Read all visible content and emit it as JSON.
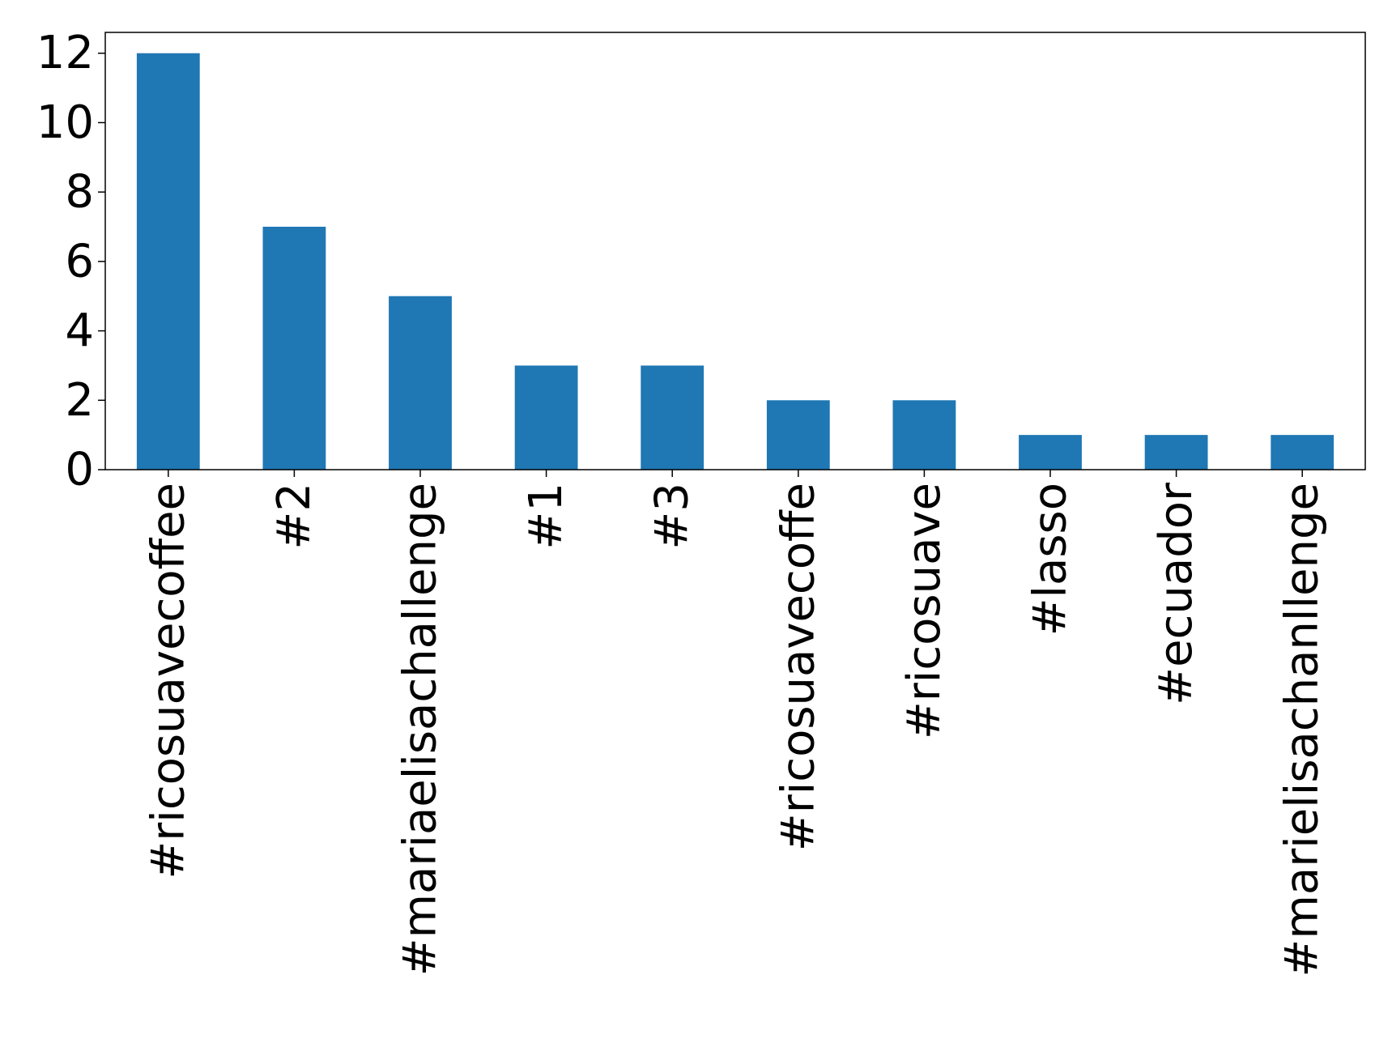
{
  "chart_data": {
    "type": "bar",
    "categories": [
      "#ricosuavecoffee",
      "#2",
      "#mariaelisachallenge",
      "#1",
      "#3",
      "#ricosuavecoffe",
      "#ricosuave",
      "#lasso",
      "#ecuador",
      "#marielisachanllenge"
    ],
    "values": [
      12,
      7,
      5,
      3,
      3,
      2,
      2,
      1,
      1,
      1
    ],
    "title": "",
    "xlabel": "",
    "ylabel": "",
    "ylim": [
      0,
      12.6
    ],
    "yticks": [
      0,
      2,
      4,
      6,
      8,
      10,
      12
    ],
    "grid": false,
    "legend": "none",
    "bar_color": "#1f77b4"
  }
}
